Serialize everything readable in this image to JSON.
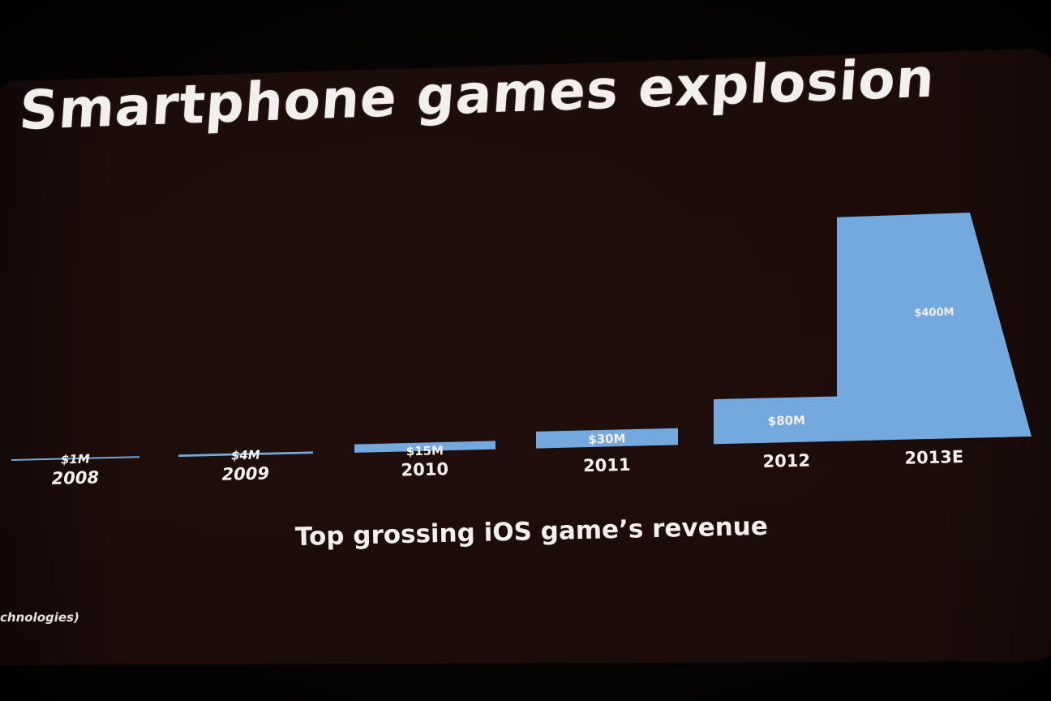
{
  "slide": {
    "title": "Smartphone games explosion",
    "caption": "Top grossing iOS game’s revenue",
    "source_fragment": "chnologies)"
  },
  "colors": {
    "bar": "#74a9e0",
    "text": "#f3efec",
    "background": "#1c0c09"
  },
  "chart_data": {
    "type": "bar",
    "categories": [
      "2008",
      "2009",
      "2010",
      "2011",
      "2012",
      "2013E"
    ],
    "values": [
      1,
      4,
      15,
      30,
      80,
      400
    ],
    "value_labels": [
      "$1M",
      "$4M",
      "$15M",
      "$30M",
      "$80M",
      "$400M"
    ],
    "unit": "$M",
    "title": "Smartphone games explosion",
    "xlabel": "Top grossing iOS game’s revenue",
    "ylabel": "",
    "ylim": [
      0,
      400
    ],
    "grid": false,
    "legend": "none"
  }
}
